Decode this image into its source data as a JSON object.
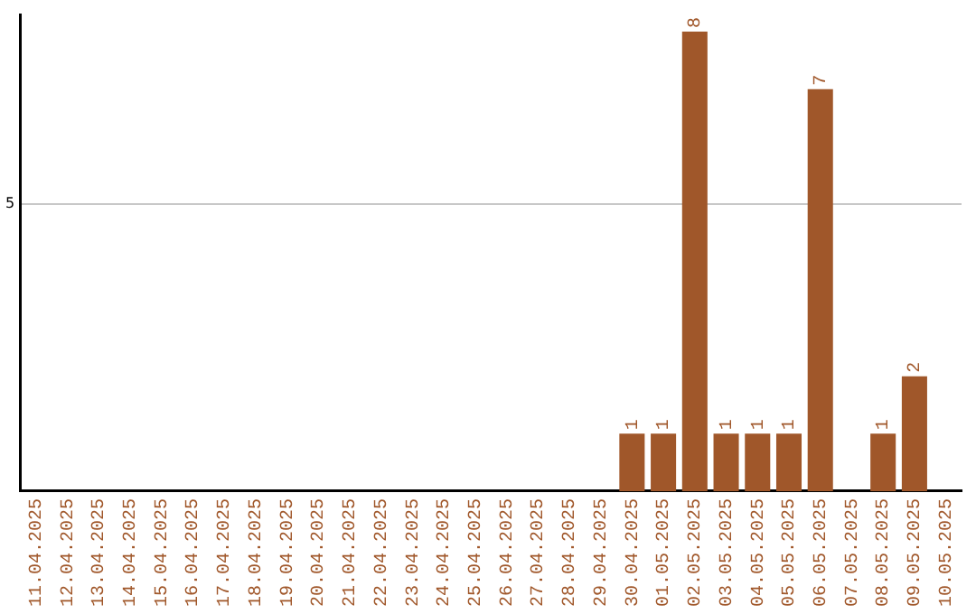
{
  "chart_data": {
    "type": "bar",
    "categories": [
      "11.04.2025",
      "12.04.2025",
      "13.04.2025",
      "14.04.2025",
      "15.04.2025",
      "16.04.2025",
      "17.04.2025",
      "18.04.2025",
      "19.04.2025",
      "20.04.2025",
      "21.04.2025",
      "22.04.2025",
      "23.04.2025",
      "24.04.2025",
      "25.04.2025",
      "26.04.2025",
      "27.04.2025",
      "28.04.2025",
      "29.04.2025",
      "30.04.2025",
      "01.05.2025",
      "02.05.2025",
      "03.05.2025",
      "04.05.2025",
      "05.05.2025",
      "06.05.2025",
      "07.05.2025",
      "08.05.2025",
      "09.05.2025",
      "10.05.2025"
    ],
    "values": [
      null,
      null,
      null,
      null,
      null,
      null,
      null,
      null,
      null,
      null,
      null,
      null,
      null,
      null,
      null,
      null,
      null,
      null,
      null,
      1,
      1,
      8,
      1,
      1,
      1,
      7,
      null,
      1,
      2,
      null
    ],
    "color": "#a0572a",
    "ylim": [
      0,
      8.3
    ],
    "yticks": [
      5
    ],
    "grid": "y",
    "data_labels": true,
    "legend": false
  }
}
